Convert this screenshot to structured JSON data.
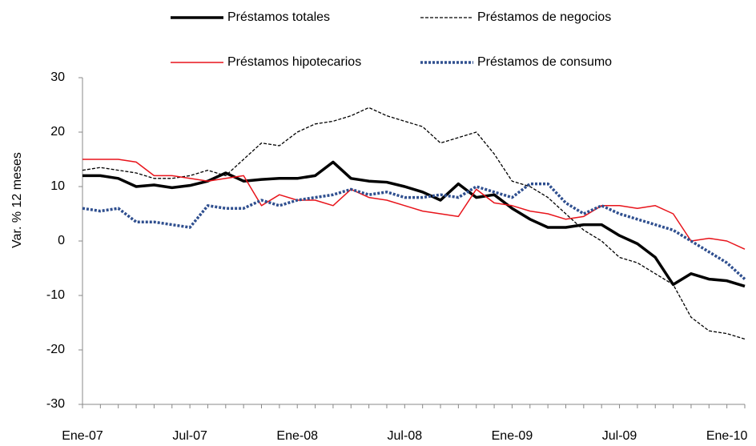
{
  "chart_data": {
    "type": "line",
    "y_label": "Var. % 12 meses",
    "categories": [
      "Ene-07",
      null,
      null,
      null,
      null,
      null,
      "Jul-07",
      null,
      null,
      null,
      null,
      null,
      "Ene-08",
      null,
      null,
      null,
      null,
      null,
      "Jul-08",
      null,
      null,
      null,
      null,
      null,
      "Ene-09",
      null,
      null,
      null,
      null,
      null,
      "Jul-09",
      null,
      null,
      null,
      null,
      null,
      "Ene-10",
      null
    ],
    "ylim": [
      -30,
      30
    ],
    "yticks": [
      -30,
      -20,
      -10,
      0,
      10,
      20,
      30
    ],
    "grid": false,
    "series": [
      {
        "name": "Préstamos totales",
        "color": "#000000",
        "width": 3.5,
        "dash": "solid",
        "values": [
          12,
          12,
          11.5,
          10,
          10.3,
          9.8,
          10.2,
          11,
          12.5,
          11,
          11.3,
          11.5,
          11.5,
          12,
          14.5,
          11.5,
          11,
          10.8,
          10,
          9,
          7.5,
          10.5,
          8,
          8.5,
          6,
          4,
          2.5,
          2.5,
          3,
          3,
          1,
          -0.5,
          -3,
          -8,
          -6,
          -7,
          -7.3,
          -8.3
        ]
      },
      {
        "name": "Préstamos de negocios",
        "color": "#000000",
        "width": 1.3,
        "dash": "dashed",
        "values": [
          13,
          13.5,
          13,
          12.5,
          11.5,
          11.5,
          12,
          13,
          12,
          15,
          18,
          17.5,
          20,
          21.5,
          22,
          23,
          24.5,
          23,
          22,
          21,
          18,
          19,
          20,
          16,
          11,
          10,
          8,
          5,
          2,
          0,
          -3,
          -4,
          -6,
          -8,
          -14,
          -16.5,
          -17,
          -18
        ]
      },
      {
        "name": "Préstamos hipotecarios",
        "color": "#e8141b",
        "width": 1.5,
        "dash": "solid",
        "values": [
          15,
          15,
          15,
          14.5,
          12,
          12,
          11.5,
          11,
          11.5,
          12,
          6.5,
          8.5,
          7.5,
          7.5,
          6.5,
          9.5,
          8,
          7.5,
          6.5,
          5.5,
          5,
          4.5,
          9.5,
          7,
          6.5,
          5.5,
          5,
          4,
          4.5,
          6.5,
          6.5,
          6,
          6.5,
          5,
          0,
          0.5,
          0,
          -1.5
        ]
      },
      {
        "name": "Préstamos de consumo",
        "color": "#2f4f8f",
        "width": 3.5,
        "dash": "dotted",
        "values": [
          6,
          5.5,
          6,
          3.5,
          3.5,
          3,
          2.5,
          6.5,
          6,
          6,
          7.5,
          6.5,
          7.5,
          8,
          8.5,
          9.5,
          8.5,
          9,
          8,
          8,
          8.5,
          8,
          10,
          9,
          8,
          10.5,
          10.5,
          7,
          5,
          6.5,
          5,
          4,
          3,
          2,
          0,
          -2,
          -4,
          -7
        ]
      }
    ]
  }
}
